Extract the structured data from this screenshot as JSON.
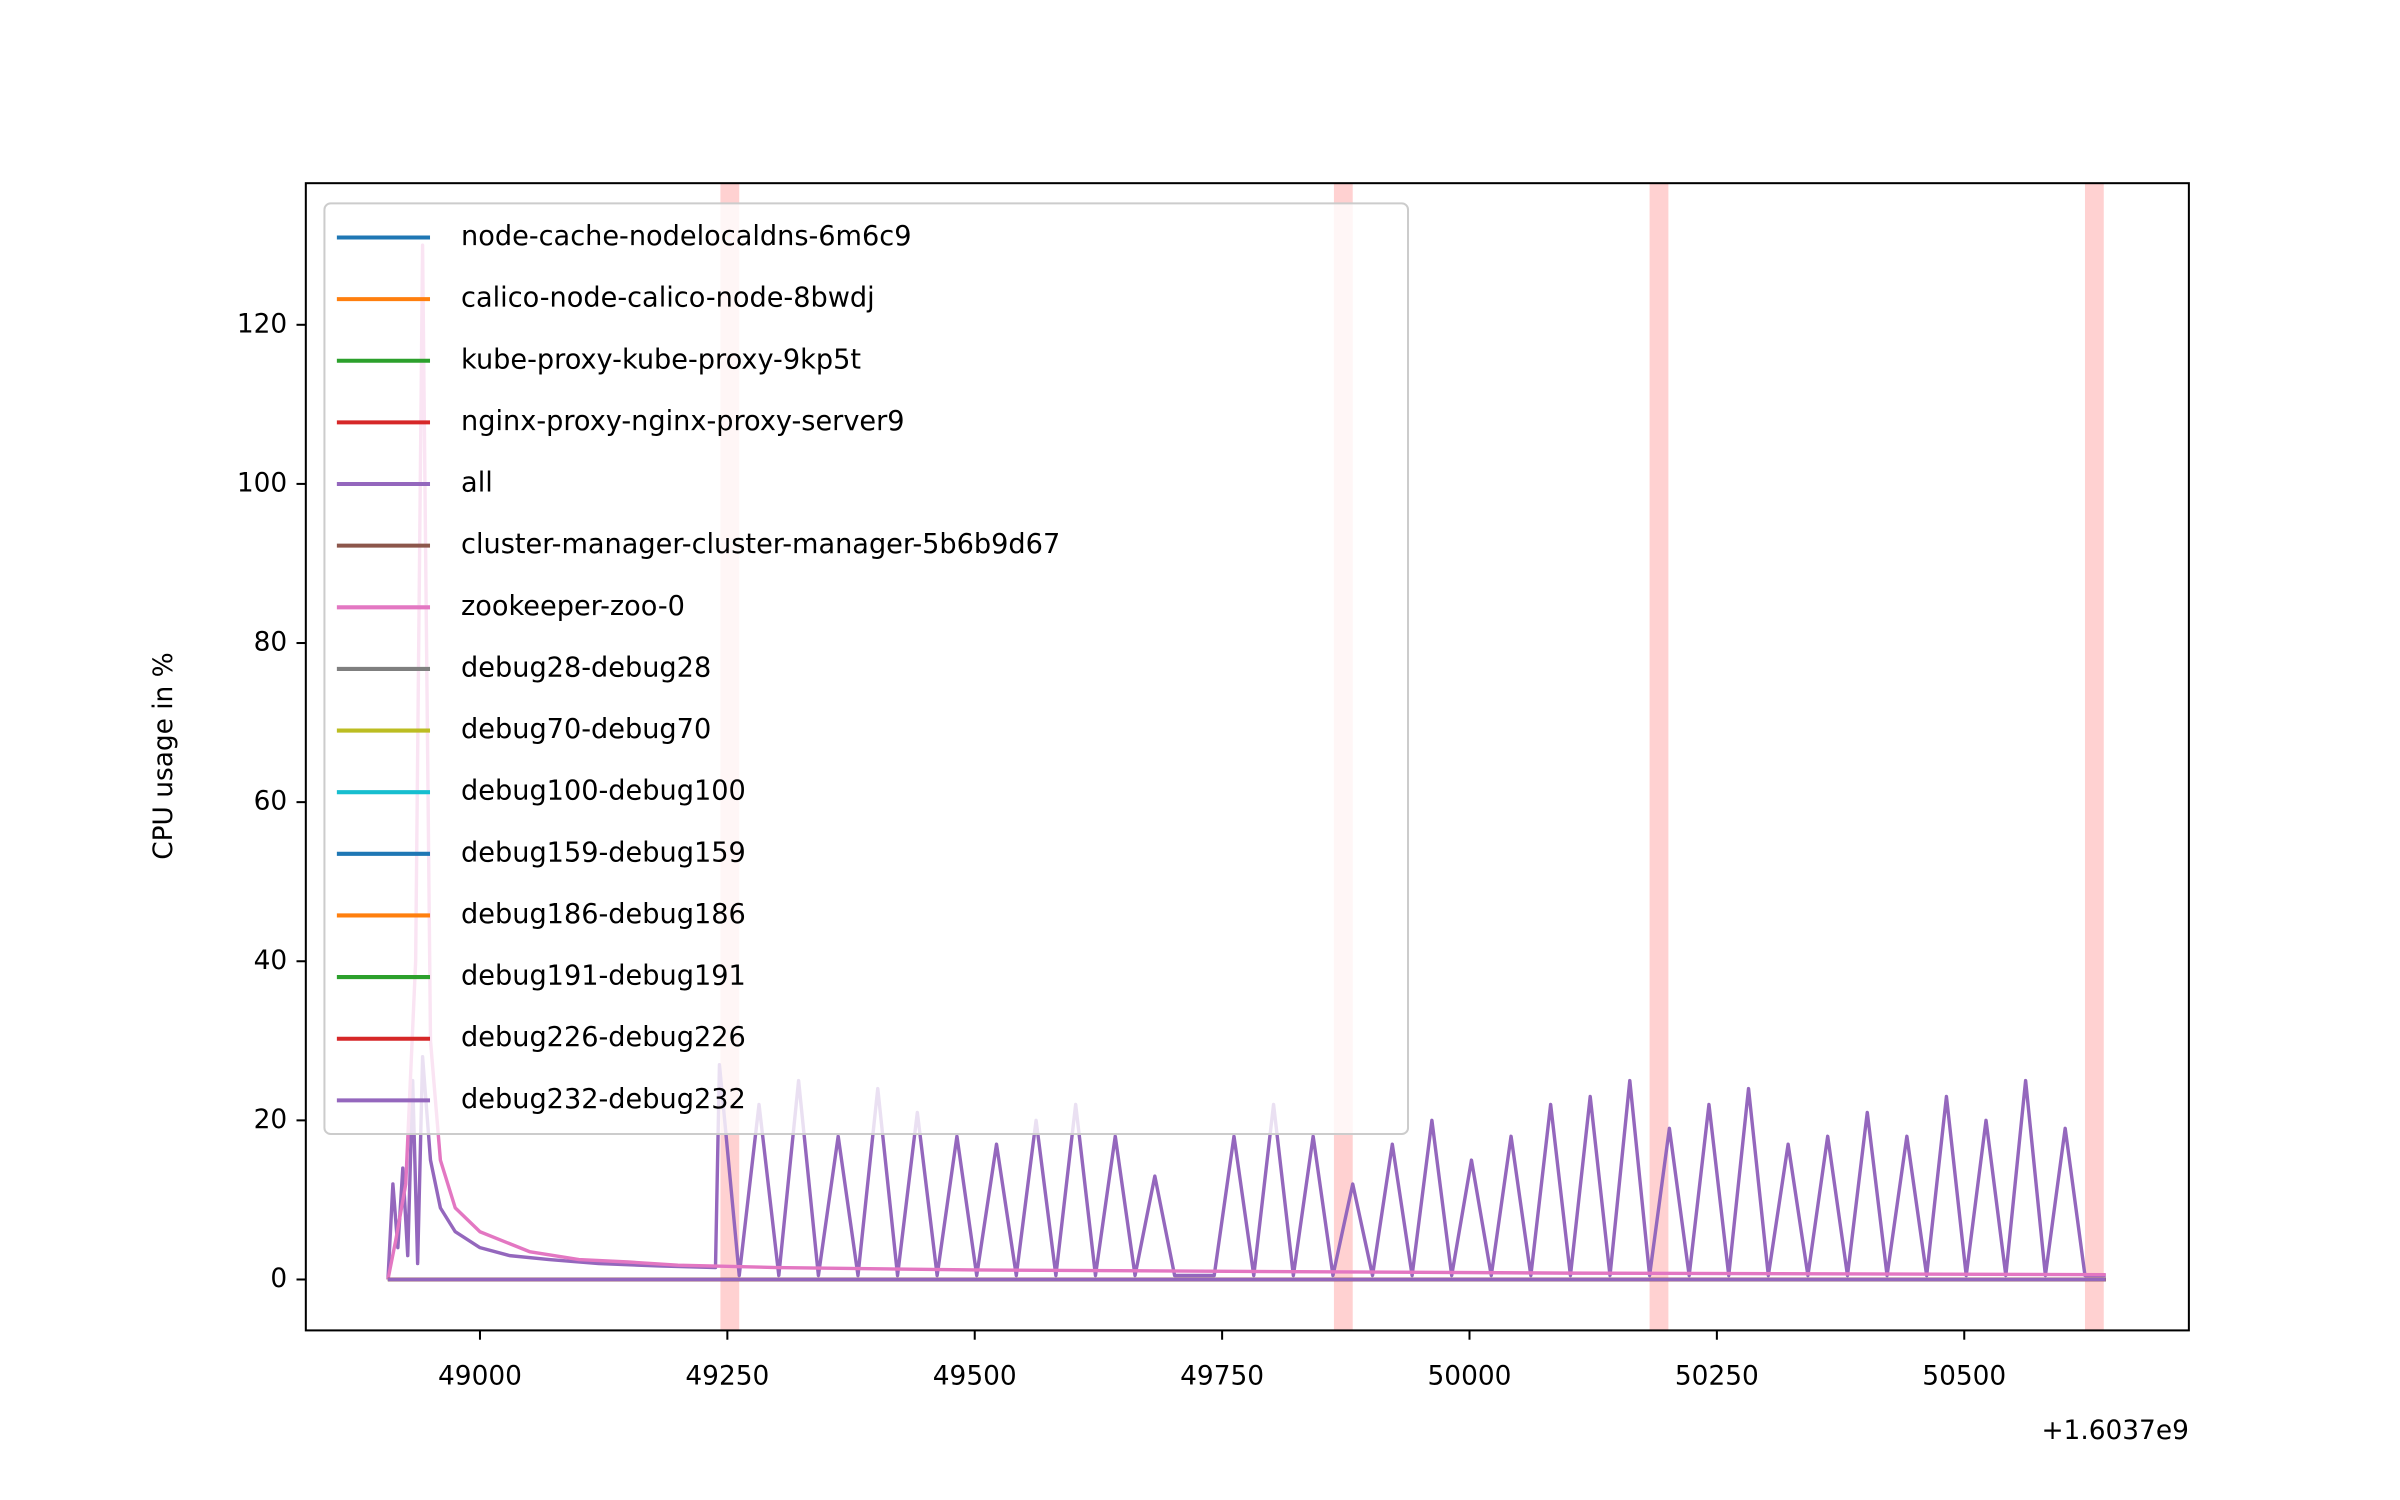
{
  "chart_data": {
    "type": "line",
    "ylabel": "CPU usage in %",
    "x_offset_label": "+1.6037e9",
    "xlim": [
      48824,
      50727
    ],
    "ylim": [
      -6.4,
      137.8
    ],
    "xticks": [
      49000,
      49250,
      49500,
      49750,
      50000,
      50250,
      50500
    ],
    "yticks": [
      0,
      20,
      40,
      60,
      80,
      100,
      120
    ],
    "legend": "upper left",
    "span_color": "#ffcccc",
    "spans": [
      [
        49243,
        49262
      ],
      [
        49863,
        49882
      ],
      [
        50182,
        50201
      ],
      [
        50622,
        50641
      ]
    ],
    "series": [
      {
        "name": "node-cache-nodelocaldns-6m6c9",
        "color": "#1f77b4",
        "x": [
          48907,
          50643
        ],
        "values": [
          0,
          0
        ]
      },
      {
        "name": "calico-node-calico-node-8bwdj",
        "color": "#ff7f0e",
        "x": [
          48907,
          50643
        ],
        "values": [
          0,
          0
        ]
      },
      {
        "name": "kube-proxy-kube-proxy-9kp5t",
        "color": "#2ca02c",
        "x": [
          48907,
          50643
        ],
        "values": [
          0,
          0
        ]
      },
      {
        "name": "nginx-proxy-nginx-proxy-server9",
        "color": "#d62728",
        "x": [
          48907,
          50643
        ],
        "values": [
          0,
          0
        ]
      },
      {
        "name": "all",
        "color": "#9467bd",
        "x": [
          48907,
          48912,
          48917,
          48922,
          48927,
          48932,
          48937,
          48942,
          48950,
          48960,
          48975,
          49000,
          49030,
          49070,
          49120,
          49180,
          49238,
          49242,
          49262,
          49282,
          49302,
          49322,
          49342,
          49362,
          49382,
          49402,
          49422,
          49442,
          49462,
          49482,
          49502,
          49522,
          49542,
          49562,
          49582,
          49602,
          49622,
          49642,
          49662,
          49682,
          49702,
          49722,
          49742,
          49762,
          49782,
          49802,
          49822,
          49842,
          49862,
          49882,
          49902,
          49922,
          49942,
          49962,
          49982,
          50002,
          50022,
          50042,
          50062,
          50082,
          50102,
          50122,
          50142,
          50162,
          50182,
          50202,
          50222,
          50242,
          50262,
          50282,
          50302,
          50322,
          50342,
          50362,
          50382,
          50402,
          50422,
          50442,
          50462,
          50482,
          50502,
          50522,
          50542,
          50562,
          50582,
          50602,
          50622,
          50643
        ],
        "values": [
          0,
          12,
          4,
          14,
          3,
          25,
          2,
          28,
          15,
          9,
          6,
          4,
          3,
          2.5,
          2,
          1.7,
          1.5,
          27,
          0.5,
          22,
          0.5,
          25,
          0.5,
          18,
          0.5,
          24,
          0.5,
          21,
          0.5,
          18,
          0.5,
          17,
          0.5,
          20,
          0.5,
          22,
          0.5,
          18,
          0.5,
          13,
          0.5,
          0.5,
          0.5,
          18,
          0.5,
          22,
          0.5,
          18,
          0.5,
          12,
          0.5,
          17,
          0.5,
          20,
          0.5,
          15,
          0.5,
          18,
          0.5,
          22,
          0.5,
          23,
          0.5,
          25,
          0.5,
          19,
          0.5,
          22,
          0.5,
          24,
          0.5,
          17,
          0.5,
          18,
          0.5,
          21,
          0.5,
          18,
          0.5,
          23,
          0.5,
          20,
          0.5,
          25,
          0.5,
          19,
          0.5,
          0.5
        ]
      },
      {
        "name": "cluster-manager-cluster-manager-5b6b9d67",
        "color": "#8c564b",
        "x": [
          48907,
          50643
        ],
        "values": [
          0,
          0
        ]
      },
      {
        "name": "zookeeper-zoo-0",
        "color": "#e377c2",
        "x": [
          48907,
          48915,
          48925,
          48935,
          48942,
          48950,
          48960,
          48975,
          49000,
          49050,
          49100,
          49150,
          49200,
          49300,
          49500,
          49800,
          50100,
          50400,
          50643
        ],
        "values": [
          0,
          5,
          12,
          40,
          130,
          30,
          15,
          9,
          6,
          3.5,
          2.5,
          2.2,
          1.8,
          1.5,
          1.2,
          1,
          0.8,
          0.7,
          0.6
        ]
      },
      {
        "name": "debug28-debug28",
        "color": "#7f7f7f",
        "x": [
          48907,
          50643
        ],
        "values": [
          0,
          0
        ]
      },
      {
        "name": "debug70-debug70",
        "color": "#bcbd22",
        "x": [
          48907,
          50643
        ],
        "values": [
          0,
          0
        ]
      },
      {
        "name": "debug100-debug100",
        "color": "#17becf",
        "x": [
          48907,
          50643
        ],
        "values": [
          0,
          0
        ]
      },
      {
        "name": "debug159-debug159",
        "color": "#1f77b4",
        "x": [
          48907,
          50643
        ],
        "values": [
          0,
          0
        ]
      },
      {
        "name": "debug186-debug186",
        "color": "#ff7f0e",
        "x": [
          48907,
          50643
        ],
        "values": [
          0,
          0
        ]
      },
      {
        "name": "debug191-debug191",
        "color": "#2ca02c",
        "x": [
          48907,
          50643
        ],
        "values": [
          0,
          0
        ]
      },
      {
        "name": "debug226-debug226",
        "color": "#d62728",
        "x": [
          48907,
          50643
        ],
        "values": [
          0,
          0
        ]
      },
      {
        "name": "debug232-debug232",
        "color": "#9467bd",
        "x": [
          48907,
          50643
        ],
        "values": [
          0,
          0
        ]
      }
    ]
  }
}
